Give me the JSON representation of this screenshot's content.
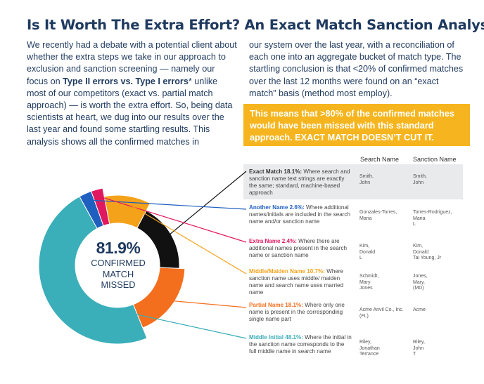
{
  "title": "Is It Worth The Extra Effort? An Exact Match Sanction Analysis",
  "para_left": {
    "t1": "We recently had a debate with a potential client about whether the extra steps we take in our approach to exclusion and sanction screening — namely our focus on ",
    "bold": "Type II errors vs. Type I errors",
    "t2": "* unlike most of our competitors (exact vs. partial match approach) — is worth the extra effort. So, being data scientists at heart, we dug into our results over the last year and found some startling results. This analysis shows all the confirmed matches in"
  },
  "para_right": "our system over the last year, with a reconciliation of each one into an aggregate bucket of match type. The startling conclusion is that <20% of confirmed matches over the last 12 months were found on an “exact match” basis (method most employ).",
  "callout": "This means that >80% of the confirmed matches would have been missed with this standard approach. EXACT MATCH DOESN’T CUT IT.",
  "table": {
    "col_search": "Search Name",
    "col_sanction": "Sanction Name",
    "rows": [
      {
        "label": "Exact Match 18.1%:",
        "text": " Where search and sanction name text strings are exactly the same; standard, machine-based approach",
        "search": "Smith,\nJohn",
        "sanction": "Smith,\nJohn",
        "color": "#333333"
      },
      {
        "label": "Another Name 2.6%:",
        "text": " Where additional names/initials are included in the search name and/or sanction name",
        "search": "Gonzales-Torres,\nMaria",
        "sanction": "Torres-Rodriguez,\nMaria\nL",
        "color": "#1f5fbf"
      },
      {
        "label": "Extra Name 2.4%:",
        "text": " Where there are additional names present in the search name or sanction name",
        "search": "Kim,\nDonald\nL",
        "sanction": "Kim,\nDonald\nTai Young, Jr",
        "color": "#e0185f"
      },
      {
        "label": "Middle/Maiden Name 10.7%:",
        "text": " Where sanction name uses middle/ maiden name and search name uses married name",
        "search": "Schmidt,\nMary\nJones",
        "sanction": "Jones,\nMary,\n(MD)",
        "color": "#f5a21b"
      },
      {
        "label": "Partial Name 18.1%:",
        "text": " Where only one name is present in the corresponding single name part",
        "search": "Acme Anvil Co., Inc.\n(FL)",
        "sanction": "Acme",
        "color": "#f36f1e"
      },
      {
        "label": "Middle Initial 48.1%:",
        "text": " Where the initial in the sanction name corresponds to the full middle name in search name",
        "search": "Riley,\nJonathan\nTerrance",
        "sanction": "Riley,\nJohn\nT",
        "color": "#3aaeb9"
      }
    ]
  },
  "chart_data": {
    "type": "pie",
    "title": "",
    "categories": [
      "Middle Initial",
      "Another Name",
      "Extra Name",
      "Middle/Maiden Name",
      "Exact Match",
      "Partial Name"
    ],
    "values": [
      48.1,
      2.6,
      2.4,
      10.7,
      18.1,
      18.1
    ],
    "colors": [
      "#3aaeb9",
      "#1f5fbf",
      "#e0185f",
      "#f5a21b",
      "#111111",
      "#f36f1e"
    ],
    "center_value": "81.9%",
    "center_label": "CONFIRMED\nMATCH\nMISSED"
  }
}
